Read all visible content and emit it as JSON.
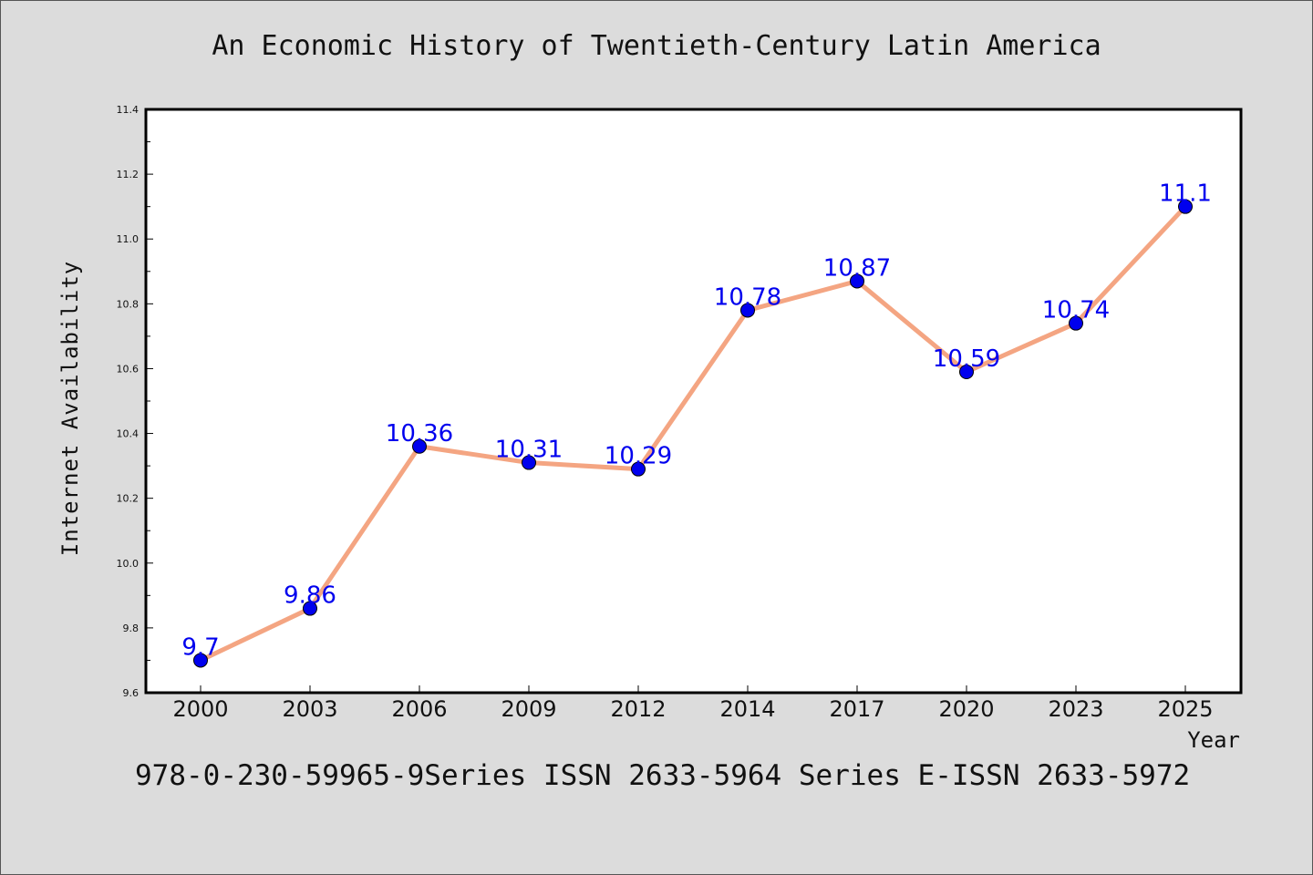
{
  "chart_data": {
    "type": "line",
    "title": "An Economic History of Twentieth-Century Latin America",
    "xlabel": "Year",
    "ylabel": "Internet Availability",
    "categories": [
      "2000",
      "2003",
      "2006",
      "2009",
      "2012",
      "2014",
      "2017",
      "2020",
      "2023",
      "2025"
    ],
    "series": [
      {
        "values": [
          9.7,
          9.86,
          10.36,
          10.31,
          10.29,
          10.78,
          10.87,
          10.59,
          10.74,
          11.1
        ],
        "labels": [
          "9.7",
          "9.86",
          "10.36",
          "10.31",
          "10.29",
          "10.78",
          "10.87",
          "10.59",
          "10.74",
          "11.1"
        ],
        "line_color": "#f4a582",
        "marker_color": "#0000ee"
      }
    ],
    "ylim": [
      9.6,
      11.4
    ],
    "yticks": [
      "9.6",
      "9.8",
      "10.0",
      "10.2",
      "10.4",
      "10.6",
      "10.8",
      "11.0",
      "11.2",
      "11.4"
    ],
    "grid": false,
    "legend": "none"
  },
  "footer": {
    "text": "978-0-230-59965-9Series ISSN 2633-5964 Series E-ISSN 2633-5972"
  },
  "colors": {
    "background": "#dcdcdc",
    "plot_background": "#ffffff",
    "label_color": "#0000ee"
  }
}
